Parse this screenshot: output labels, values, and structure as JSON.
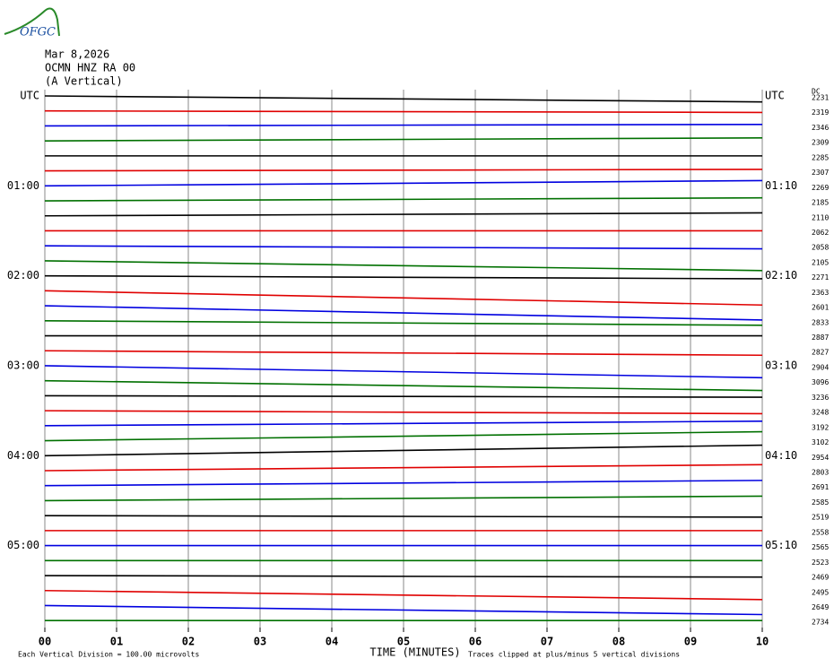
{
  "chart_data": {
    "type": "helicorder",
    "logo": "OFGC",
    "header": [
      "Mar 8,2026",
      "OCMN HNZ RA 00",
      "(A Vertical)"
    ],
    "xlabel": "TIME (MINUTES)",
    "xlim": [
      0,
      10
    ],
    "xticks": [
      {
        "value": 0,
        "label": "00"
      },
      {
        "value": 1,
        "label": "01"
      },
      {
        "value": 2,
        "label": "02"
      },
      {
        "value": 3,
        "label": "03"
      },
      {
        "value": 4,
        "label": "04"
      },
      {
        "value": 5,
        "label": "05"
      },
      {
        "value": 6,
        "label": "06"
      },
      {
        "value": 7,
        "label": "07"
      },
      {
        "value": 8,
        "label": "08"
      },
      {
        "value": 9,
        "label": "09"
      },
      {
        "value": 10,
        "label": "10"
      }
    ],
    "grid": true,
    "left_categories": [
      "UTC",
      null,
      null,
      null,
      null,
      null,
      "01:00",
      null,
      null,
      null,
      null,
      null,
      "02:00",
      null,
      null,
      null,
      null,
      null,
      "03:00",
      null,
      null,
      null,
      null,
      null,
      "04:00",
      null,
      null,
      null,
      null,
      null,
      "05:00",
      null,
      null,
      null,
      null,
      null
    ],
    "right_categories": [
      "UTC",
      null,
      null,
      null,
      null,
      null,
      "01:10",
      null,
      null,
      null,
      null,
      null,
      "02:10",
      null,
      null,
      null,
      null,
      null,
      "03:10",
      null,
      null,
      null,
      null,
      null,
      "04:10",
      null,
      null,
      null,
      null,
      null,
      "05:10",
      null,
      null,
      null,
      null,
      null
    ],
    "dc_label": "DC",
    "dc_values": [
      2231,
      2319,
      2346,
      2309,
      2285,
      2307,
      2269,
      2185,
      2110,
      2062,
      2058,
      2105,
      2271,
      2363,
      2601,
      2833,
      2887,
      2827,
      2904,
      3096,
      3236,
      3248,
      3192,
      3102,
      2954,
      2803,
      2691,
      2585,
      2519,
      2558,
      2565,
      2523,
      2469,
      2495,
      2649,
      2734
    ],
    "traces": [
      {
        "color": "#000000",
        "values": [
          0,
          -0.4
        ]
      },
      {
        "color": "#e00000",
        "values": [
          0,
          -0.1
        ]
      },
      {
        "color": "#0000e0",
        "values": [
          0,
          0.1
        ]
      },
      {
        "color": "#007000",
        "values": [
          0,
          0.2
        ]
      },
      {
        "color": "#000000",
        "values": [
          0,
          0
        ]
      },
      {
        "color": "#e00000",
        "values": [
          0,
          0.1
        ]
      },
      {
        "color": "#0000e0",
        "values": [
          0,
          0.35
        ]
      },
      {
        "color": "#007000",
        "values": [
          0,
          0.2
        ]
      },
      {
        "color": "#000000",
        "values": [
          0,
          0.2
        ]
      },
      {
        "color": "#e00000",
        "values": [
          0,
          0
        ]
      },
      {
        "color": "#0000e0",
        "values": [
          0,
          -0.2
        ]
      },
      {
        "color": "#007000",
        "values": [
          0,
          -0.65
        ]
      },
      {
        "color": "#000000",
        "values": [
          0,
          -0.2
        ]
      },
      {
        "color": "#e00000",
        "values": [
          0,
          -0.95
        ]
      },
      {
        "color": "#0000e0",
        "values": [
          0,
          -0.95
        ]
      },
      {
        "color": "#007000",
        "values": [
          0,
          -0.3
        ]
      },
      {
        "color": "#000000",
        "values": [
          0,
          0
        ]
      },
      {
        "color": "#e00000",
        "values": [
          0,
          -0.3
        ]
      },
      {
        "color": "#0000e0",
        "values": [
          0,
          -0.8
        ]
      },
      {
        "color": "#007000",
        "values": [
          0,
          -0.65
        ]
      },
      {
        "color": "#000000",
        "values": [
          0,
          -0.1
        ]
      },
      {
        "color": "#e00000",
        "values": [
          0,
          -0.2
        ]
      },
      {
        "color": "#0000e0",
        "values": [
          0,
          0.3
        ]
      },
      {
        "color": "#007000",
        "values": [
          0,
          0.6
        ]
      },
      {
        "color": "#000000",
        "values": [
          0,
          0.7
        ]
      },
      {
        "color": "#e00000",
        "values": [
          0,
          0.4
        ]
      },
      {
        "color": "#0000e0",
        "values": [
          0,
          0.35
        ]
      },
      {
        "color": "#007000",
        "values": [
          0,
          0.3
        ]
      },
      {
        "color": "#000000",
        "values": [
          0,
          -0.1
        ]
      },
      {
        "color": "#e00000",
        "values": [
          0,
          0
        ]
      },
      {
        "color": "#0000e0",
        "values": [
          0,
          0
        ]
      },
      {
        "color": "#007000",
        "values": [
          0,
          0
        ]
      },
      {
        "color": "#000000",
        "values": [
          0,
          -0.1
        ]
      },
      {
        "color": "#e00000",
        "values": [
          0,
          -0.6
        ]
      },
      {
        "color": "#0000e0",
        "values": [
          0,
          -0.6
        ]
      },
      {
        "color": "#007000",
        "values": [
          0,
          0
        ]
      }
    ],
    "footer_left": "Each Vertical Division =  100.00 microvolts",
    "footer_right": "Traces clipped at plus/minus 5 vertical divisions"
  }
}
